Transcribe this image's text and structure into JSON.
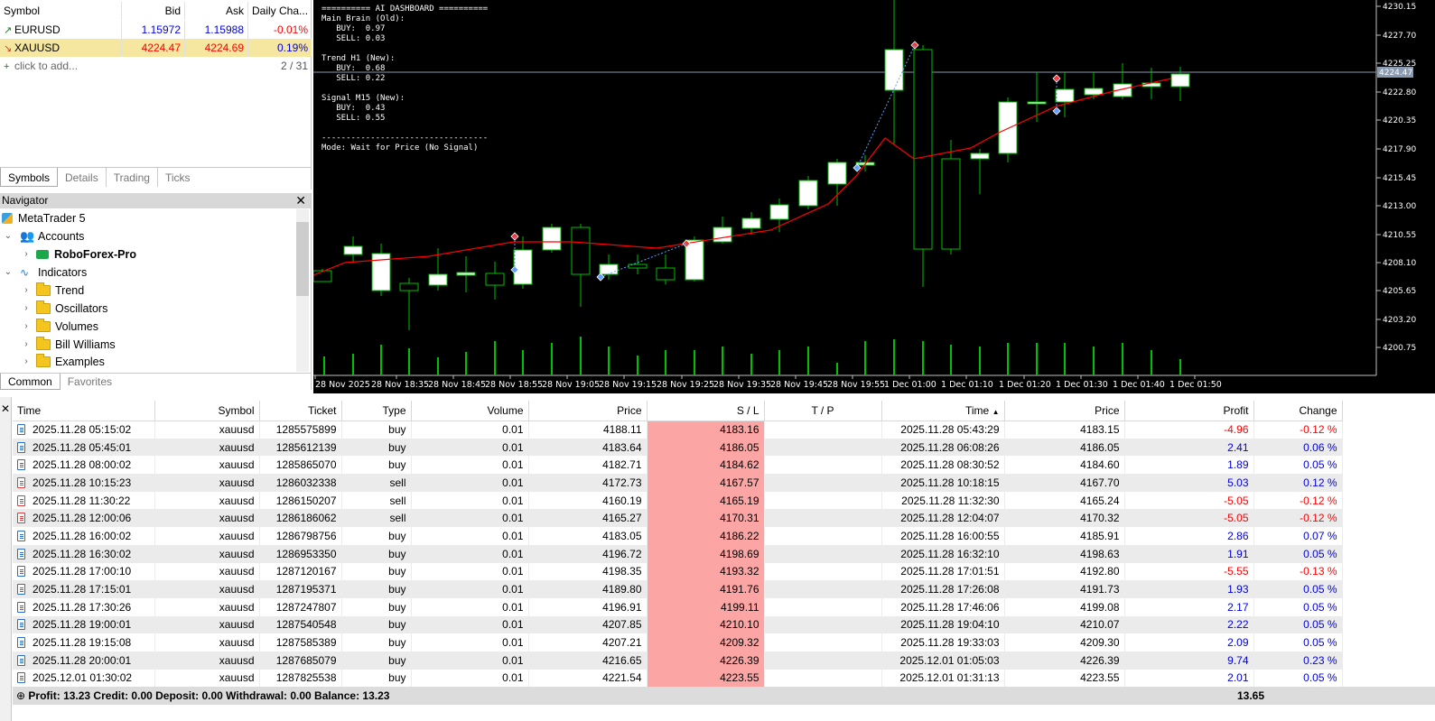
{
  "market_watch": {
    "headers": [
      "Symbol",
      "Bid",
      "Ask",
      "Daily Cha..."
    ],
    "rows": [
      {
        "symbol": "EURUSD",
        "bid": "1.15972",
        "ask": "1.15988",
        "change": "-0.01%",
        "direction": "up"
      },
      {
        "symbol": "XAUUSD",
        "bid": "4224.47",
        "ask": "4224.69",
        "change": "0.19%",
        "direction": "down"
      }
    ],
    "add_placeholder": "click to add...",
    "count": "2 / 31",
    "tabs": [
      "Symbols",
      "Details",
      "Trading",
      "Ticks"
    ]
  },
  "navigator": {
    "title": "Navigator",
    "root": "MetaTrader 5",
    "accounts_label": "Accounts",
    "account_name": "RoboForex-Pro",
    "indicators_label": "Indicators",
    "folders": [
      "Trend",
      "Oscillators",
      "Volumes",
      "Bill Williams",
      "Examples"
    ],
    "tabs": [
      "Common",
      "Favorites"
    ]
  },
  "chart": {
    "dashboard": {
      "line1": "========== AI DASHBOARD ==========",
      "line2": "Main Brain (Old):",
      "line3": "   BUY:  0.97",
      "line4": "   SELL: 0.03",
      "line5": "Trend H1 (New):",
      "line6": "   BUY:  0.68",
      "line7": "   SELL: 0.22",
      "line8": "Signal M15 (New):",
      "line9": "   BUY:  0.43",
      "line10": "   SELL: 0.55",
      "line11": "----------------------------------",
      "line12": "Mode: Wait for Price (No Signal)"
    },
    "price_labels": [
      "4230.15",
      "4227.70",
      "4225.25",
      "4222.80",
      "4220.35",
      "4217.90",
      "4215.45",
      "4213.00",
      "4210.55",
      "4208.10",
      "4205.65",
      "4203.20",
      "4200.75"
    ],
    "current_price": "4224.47",
    "time_labels": [
      "28 Nov 2025",
      "28 Nov 18:35",
      "28 Nov 18:45",
      "28 Nov 18:55",
      "28 Nov 19:05",
      "28 Nov 19:15",
      "28 Nov 19:25",
      "28 Nov 19:35",
      "28 Nov 19:45",
      "28 Nov 19:55",
      "1 Dec 01:00",
      "1 Dec 01:10",
      "1 Dec 01:20",
      "1 Dec 01:30",
      "1 Dec 01:40",
      "1 Dec 01:50"
    ],
    "colors": {
      "bull_body": "#ffffff",
      "bear_body": "#000000",
      "wick": "#00c000",
      "ma": "#ff0000",
      "volume": "#00c000"
    }
  },
  "history": {
    "headers": [
      "Time",
      "Symbol",
      "Ticket",
      "Type",
      "Volume",
      "Price",
      "S / L",
      "T / P",
      "Time",
      "Price",
      "Profit",
      "Change"
    ],
    "rows": [
      [
        "2025.11.28 05:15:02",
        "xauusd",
        "1285575899",
        "buy",
        "0.01",
        "4188.11",
        "4183.16",
        "",
        "2025.11.28 05:43:29",
        "4183.15",
        "-4.96",
        "-0.12 %"
      ],
      [
        "2025.11.28 05:45:01",
        "xauusd",
        "1285612139",
        "buy",
        "0.01",
        "4183.64",
        "4186.05",
        "",
        "2025.11.28 06:08:26",
        "4186.05",
        "2.41",
        "0.06 %"
      ],
      [
        "2025.11.28 08:00:02",
        "xauusd",
        "1285865070",
        "buy",
        "0.01",
        "4182.71",
        "4184.62",
        "",
        "2025.11.28 08:30:52",
        "4184.60",
        "1.89",
        "0.05 %"
      ],
      [
        "2025.11.28 10:15:23",
        "xauusd",
        "1286032338",
        "sell",
        "0.01",
        "4172.73",
        "4167.57",
        "",
        "2025.11.28 10:18:15",
        "4167.70",
        "5.03",
        "0.12 %"
      ],
      [
        "2025.11.28 11:30:22",
        "xauusd",
        "1286150207",
        "sell",
        "0.01",
        "4160.19",
        "4165.19",
        "",
        "2025.11.28 11:32:30",
        "4165.24",
        "-5.05",
        "-0.12 %"
      ],
      [
        "2025.11.28 12:00:06",
        "xauusd",
        "1286186062",
        "sell",
        "0.01",
        "4165.27",
        "4170.31",
        "",
        "2025.11.28 12:04:07",
        "4170.32",
        "-5.05",
        "-0.12 %"
      ],
      [
        "2025.11.28 16:00:02",
        "xauusd",
        "1286798756",
        "buy",
        "0.01",
        "4183.05",
        "4186.22",
        "",
        "2025.11.28 16:00:55",
        "4185.91",
        "2.86",
        "0.07 %"
      ],
      [
        "2025.11.28 16:30:02",
        "xauusd",
        "1286953350",
        "buy",
        "0.01",
        "4196.72",
        "4198.69",
        "",
        "2025.11.28 16:32:10",
        "4198.63",
        "1.91",
        "0.05 %"
      ],
      [
        "2025.11.28 17:00:10",
        "xauusd",
        "1287120167",
        "buy",
        "0.01",
        "4198.35",
        "4193.32",
        "",
        "2025.11.28 17:01:51",
        "4192.80",
        "-5.55",
        "-0.13 %"
      ],
      [
        "2025.11.28 17:15:01",
        "xauusd",
        "1287195371",
        "buy",
        "0.01",
        "4189.80",
        "4191.76",
        "",
        "2025.11.28 17:26:08",
        "4191.73",
        "1.93",
        "0.05 %"
      ],
      [
        "2025.11.28 17:30:26",
        "xauusd",
        "1287247807",
        "buy",
        "0.01",
        "4196.91",
        "4199.11",
        "",
        "2025.11.28 17:46:06",
        "4199.08",
        "2.17",
        "0.05 %"
      ],
      [
        "2025.11.28 19:00:01",
        "xauusd",
        "1287540548",
        "buy",
        "0.01",
        "4207.85",
        "4210.10",
        "",
        "2025.11.28 19:04:10",
        "4210.07",
        "2.22",
        "0.05 %"
      ],
      [
        "2025.11.28 19:15:08",
        "xauusd",
        "1287585389",
        "buy",
        "0.01",
        "4207.21",
        "4209.32",
        "",
        "2025.11.28 19:33:03",
        "4209.30",
        "2.09",
        "0.05 %"
      ],
      [
        "2025.11.28 20:00:01",
        "xauusd",
        "1287685079",
        "buy",
        "0.01",
        "4216.65",
        "4226.39",
        "",
        "2025.12.01 01:05:03",
        "4226.39",
        "9.74",
        "0.23 %"
      ],
      [
        "2025.12.01 01:30:02",
        "xauusd",
        "1287825538",
        "buy",
        "0.01",
        "4221.54",
        "4223.55",
        "",
        "2025.12.01 01:31:13",
        "4223.55",
        "2.01",
        "0.05 %"
      ]
    ],
    "summary": "Profit: 13.23  Credit: 0.00  Deposit: 0.00  Withdrawal: 0.00  Balance: 13.23",
    "summary_total": "13.65"
  }
}
